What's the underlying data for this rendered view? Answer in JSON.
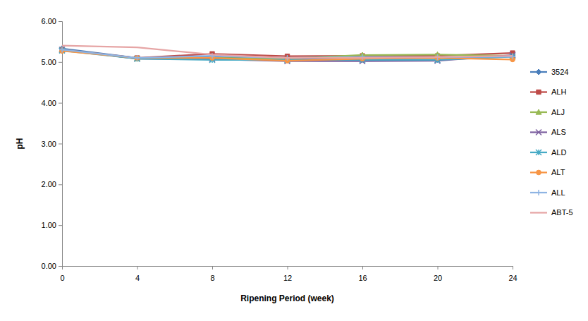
{
  "chart_data": {
    "type": "line",
    "x_label": "Ripening Period (week)",
    "y_label": "pH",
    "x": [
      0,
      4,
      8,
      12,
      16,
      20,
      24
    ],
    "xlim": [
      0,
      24
    ],
    "xticks": [
      0,
      4,
      8,
      12,
      16,
      20,
      24
    ],
    "ylim": [
      0,
      6
    ],
    "yticks": [
      {
        "value": 0,
        "label": "0.00"
      },
      {
        "value": 1,
        "label": "1.00"
      },
      {
        "value": 2,
        "label": "2.00"
      },
      {
        "value": 3,
        "label": "3.00"
      },
      {
        "value": 4,
        "label": "4.00"
      },
      {
        "value": 5,
        "label": "5.00"
      },
      {
        "value": 6,
        "label": "6.00"
      }
    ],
    "grid": false,
    "legend": "right",
    "series": [
      {
        "name": "3524",
        "color": "#4a7ebb",
        "marker": "diamond",
        "values": [
          5.33,
          5.1,
          5.12,
          5.06,
          5.08,
          5.1,
          5.15
        ]
      },
      {
        "name": "ALH",
        "color": "#be4b48",
        "marker": "square",
        "values": [
          5.3,
          5.1,
          5.2,
          5.14,
          5.15,
          5.15,
          5.22
        ]
      },
      {
        "name": "ALJ",
        "color": "#98b954",
        "marker": "triangle",
        "values": [
          5.3,
          5.08,
          5.1,
          5.08,
          5.17,
          5.18,
          5.15
        ]
      },
      {
        "name": "ALS",
        "color": "#7d60a0",
        "marker": "x",
        "values": [
          5.3,
          5.08,
          5.07,
          5.02,
          5.02,
          5.03,
          5.17
        ]
      },
      {
        "name": "ALD",
        "color": "#46aac5",
        "marker": "star",
        "values": [
          5.28,
          5.08,
          5.05,
          5.05,
          5.05,
          5.05,
          5.13
        ]
      },
      {
        "name": "ALT",
        "color": "#f79646",
        "marker": "circle",
        "values": [
          5.27,
          5.1,
          5.1,
          5.03,
          5.08,
          5.1,
          5.06
        ]
      },
      {
        "name": "ALL",
        "color": "#8eb4e3",
        "marker": "plus",
        "values": [
          5.3,
          5.1,
          5.15,
          5.1,
          5.12,
          5.12,
          5.13
        ]
      },
      {
        "name": "ABT-5",
        "color": "#e6a5a5",
        "marker": "none",
        "values": [
          5.4,
          5.36,
          5.18,
          5.1,
          5.1,
          5.12,
          5.15
        ]
      }
    ]
  }
}
